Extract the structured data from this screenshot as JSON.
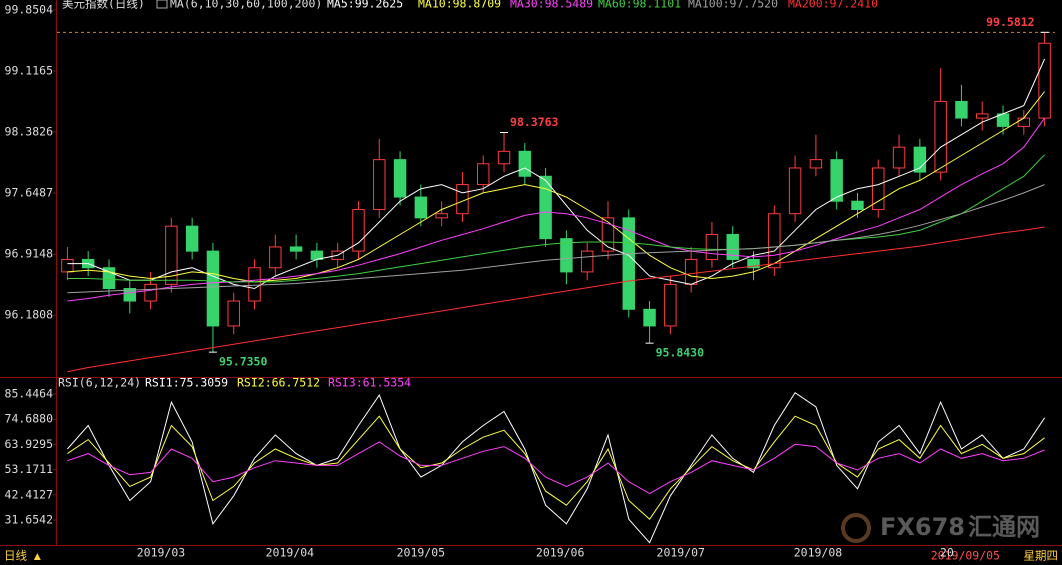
{
  "header": {
    "instrument": "美元指数(日线)",
    "ma_params": "MA(6,10,30,60,100,200)",
    "status_label": "日线 ▲",
    "status_date": "2019/09/05",
    "status_weekday": "星期四",
    "watermark": [
      "FX678",
      "汇通网"
    ]
  },
  "chart_data": [
    {
      "type": "candlestick",
      "xlim": [
        -0.5,
        47.5
      ],
      "ylim": [
        95.46,
        99.97
      ],
      "yticks": [
        99.8504,
        99.1165,
        98.3826,
        97.6487,
        96.9148,
        96.1808
      ],
      "xticks": [
        {
          "value": 4.5,
          "label": "2019/03"
        },
        {
          "value": 10.7,
          "label": "2019/04"
        },
        {
          "value": 17,
          "label": "2019/05"
        },
        {
          "value": 23.7,
          "label": "2019/06"
        },
        {
          "value": 29.5,
          "label": "2019/07"
        },
        {
          "value": 36.1,
          "label": "2019/08"
        },
        {
          "value": 42.3,
          "label": "20"
        }
      ],
      "up_color": "#ff3c3c",
      "down_color": "#36d46a",
      "open": [
        96.7,
        96.85,
        96.75,
        96.5,
        96.35,
        96.55,
        97.25,
        96.95,
        96.05,
        96.35,
        96.75,
        97.0,
        96.95,
        96.85,
        96.95,
        97.45,
        98.05,
        97.6,
        97.35,
        97.4,
        97.75,
        98.0,
        98.15,
        97.85,
        97.1,
        96.7,
        96.95,
        97.35,
        96.25,
        96.05,
        96.55,
        96.85,
        97.15,
        96.85,
        96.75,
        97.4,
        97.95,
        98.05,
        97.55,
        97.45,
        97.95,
        98.2,
        97.9,
        98.75,
        98.55,
        98.6,
        98.45,
        98.55
      ],
      "high": [
        97.0,
        96.95,
        96.85,
        96.6,
        96.7,
        97.35,
        97.35,
        97.05,
        96.45,
        96.85,
        97.15,
        97.15,
        97.05,
        97.05,
        97.55,
        98.3,
        98.15,
        97.75,
        97.55,
        97.9,
        98.1,
        98.3763,
        98.25,
        97.95,
        97.2,
        97.05,
        97.55,
        97.45,
        96.35,
        96.65,
        97.0,
        97.3,
        97.25,
        96.95,
        97.5,
        98.1,
        98.35,
        98.15,
        97.65,
        98.05,
        98.35,
        98.3,
        99.15,
        98.95,
        98.75,
        98.7,
        98.65,
        99.5812
      ],
      "low": [
        96.6,
        96.65,
        96.4,
        96.2,
        96.25,
        96.45,
        96.85,
        95.735,
        95.95,
        96.25,
        96.65,
        96.85,
        96.75,
        96.75,
        96.85,
        97.35,
        97.5,
        97.25,
        97.25,
        97.3,
        97.65,
        97.9,
        97.75,
        97.0,
        96.55,
        96.6,
        96.85,
        96.15,
        95.843,
        95.95,
        96.45,
        96.75,
        96.75,
        96.6,
        96.65,
        97.3,
        97.85,
        97.45,
        97.35,
        97.35,
        97.85,
        97.8,
        97.8,
        98.45,
        98.4,
        98.35,
        98.35,
        98.45
      ],
      "close": [
        96.85,
        96.75,
        96.5,
        96.35,
        96.55,
        97.25,
        96.95,
        96.05,
        96.35,
        96.75,
        97.0,
        96.95,
        96.85,
        96.95,
        97.45,
        98.05,
        97.6,
        97.35,
        97.4,
        97.75,
        98.0,
        98.15,
        97.85,
        97.1,
        96.7,
        96.95,
        97.35,
        96.25,
        96.05,
        96.55,
        96.85,
        97.15,
        96.85,
        96.75,
        97.4,
        97.95,
        98.05,
        97.55,
        97.45,
        97.95,
        98.2,
        97.9,
        98.75,
        98.55,
        98.6,
        98.45,
        98.55,
        99.45
      ],
      "series": [
        {
          "name": "MA5:99.2625",
          "color": "#ffffff",
          "values": [
            96.8,
            96.8,
            96.7,
            96.6,
            96.6,
            96.7,
            96.75,
            96.65,
            96.55,
            96.5,
            96.65,
            96.75,
            96.85,
            96.9,
            97.05,
            97.3,
            97.55,
            97.7,
            97.75,
            97.65,
            97.7,
            97.85,
            97.95,
            97.8,
            97.5,
            97.2,
            97.0,
            96.9,
            96.65,
            96.6,
            96.55,
            96.65,
            96.8,
            96.9,
            96.95,
            97.2,
            97.45,
            97.6,
            97.7,
            97.75,
            97.85,
            97.95,
            98.2,
            98.35,
            98.5,
            98.6,
            98.7,
            99.26
          ]
        },
        {
          "name": "MA10:98.8709",
          "color": "#ffff40",
          "values": [
            96.7,
            96.72,
            96.7,
            96.65,
            96.62,
            96.65,
            96.7,
            96.68,
            96.62,
            96.58,
            96.6,
            96.62,
            96.68,
            96.75,
            96.85,
            97.0,
            97.15,
            97.3,
            97.45,
            97.55,
            97.65,
            97.7,
            97.75,
            97.7,
            97.6,
            97.45,
            97.3,
            97.1,
            96.9,
            96.75,
            96.65,
            96.62,
            96.65,
            96.7,
            96.8,
            96.95,
            97.1,
            97.25,
            97.4,
            97.55,
            97.7,
            97.8,
            97.95,
            98.1,
            98.25,
            98.4,
            98.55,
            98.87
          ]
        },
        {
          "name": "MA30:98.5489",
          "color": "#ff40ff",
          "values": [
            96.35,
            96.38,
            96.42,
            96.45,
            96.48,
            96.52,
            96.55,
            96.57,
            96.58,
            96.6,
            96.62,
            96.65,
            96.68,
            96.72,
            96.78,
            96.85,
            96.92,
            97.0,
            97.08,
            97.15,
            97.22,
            97.3,
            97.38,
            97.42,
            97.4,
            97.35,
            97.28,
            97.2,
            97.1,
            97.0,
            96.95,
            96.92,
            96.9,
            96.88,
            96.9,
            96.95,
            97.02,
            97.1,
            97.18,
            97.25,
            97.35,
            97.45,
            97.6,
            97.75,
            97.88,
            98.0,
            98.2,
            98.55
          ]
        },
        {
          "name": "MA60:98.1101",
          "color": "#40d040",
          "values": [
            96.62,
            96.62,
            96.61,
            96.6,
            96.6,
            96.6,
            96.6,
            96.59,
            96.58,
            96.58,
            96.58,
            96.6,
            96.62,
            96.65,
            96.68,
            96.72,
            96.76,
            96.8,
            96.84,
            96.88,
            96.92,
            96.96,
            97.0,
            97.03,
            97.05,
            97.06,
            97.06,
            97.05,
            97.03,
            97.0,
            96.98,
            96.97,
            96.97,
            96.98,
            97.0,
            97.02,
            97.05,
            97.08,
            97.1,
            97.12,
            97.15,
            97.2,
            97.3,
            97.4,
            97.55,
            97.7,
            97.85,
            98.11
          ]
        },
        {
          "name": "MA100:97.7520",
          "color": "#a0a0a0",
          "values": [
            96.45,
            96.46,
            96.47,
            96.48,
            96.49,
            96.5,
            96.51,
            96.52,
            96.53,
            96.54,
            96.55,
            96.56,
            96.58,
            96.6,
            96.62,
            96.64,
            96.66,
            96.68,
            96.7,
            96.72,
            96.75,
            96.78,
            96.81,
            96.84,
            96.86,
            96.88,
            96.9,
            96.92,
            96.93,
            96.94,
            96.95,
            96.96,
            96.97,
            96.98,
            97.0,
            97.02,
            97.05,
            97.08,
            97.11,
            97.15,
            97.2,
            97.26,
            97.33,
            97.4,
            97.48,
            97.56,
            97.65,
            97.75
          ]
        },
        {
          "name": "MA200:97.2410",
          "color": "#ff3030",
          "values": [
            95.5,
            95.55,
            95.59,
            95.63,
            95.67,
            95.71,
            95.75,
            95.79,
            95.83,
            95.87,
            95.91,
            95.95,
            95.99,
            96.03,
            96.07,
            96.11,
            96.15,
            96.19,
            96.23,
            96.27,
            96.31,
            96.35,
            96.39,
            96.43,
            96.47,
            96.51,
            96.55,
            96.59,
            96.62,
            96.65,
            96.68,
            96.71,
            96.74,
            96.77,
            96.8,
            96.83,
            96.86,
            96.89,
            96.92,
            96.95,
            96.98,
            97.01,
            97.05,
            97.09,
            97.13,
            97.17,
            97.2,
            97.24
          ]
        }
      ],
      "annotations": [
        {
          "text": "99.5812",
          "value": 99.5812,
          "x": 47,
          "color": "#ff4040",
          "guide": true
        },
        {
          "text": "98.3763",
          "value": 98.3763,
          "x": 21,
          "color": "#ff4040"
        },
        {
          "text": "95.7350",
          "value": 95.735,
          "x": 7,
          "color": "#40d070"
        },
        {
          "text": "95.8430",
          "value": 95.843,
          "x": 28,
          "color": "#40d070"
        }
      ]
    },
    {
      "type": "line",
      "title": "RSI(6,12,24)",
      "xlim": [
        -0.5,
        47.5
      ],
      "ylim": [
        21,
        89.3
      ],
      "yticks": [
        85.4464,
        {
          "value": 74.688,
          "label": "74.6880"
        },
        63.9295,
        53.1711,
        42.4127,
        31.6542
      ],
      "series": [
        {
          "name": "RSI1:75.3059",
          "color": "#ffffff",
          "values": [
            62,
            72,
            55,
            40,
            48,
            82,
            65,
            30,
            42,
            58,
            68,
            60,
            55,
            58,
            72,
            85,
            62,
            50,
            55,
            65,
            72,
            78,
            62,
            38,
            30,
            45,
            68,
            32,
            22,
            42,
            55,
            68,
            58,
            52,
            72,
            86,
            80,
            55,
            45,
            65,
            72,
            60,
            82,
            62,
            68,
            58,
            62,
            75.3
          ]
        },
        {
          "name": "RSI2:66.7512",
          "color": "#ffff40",
          "values": [
            60,
            66,
            56,
            46,
            50,
            72,
            63,
            40,
            46,
            56,
            62,
            58,
            55,
            56,
            66,
            76,
            62,
            54,
            56,
            62,
            67,
            70,
            60,
            44,
            38,
            48,
            62,
            40,
            32,
            45,
            54,
            63,
            57,
            53,
            65,
            76,
            72,
            56,
            50,
            62,
            66,
            58,
            72,
            60,
            64,
            58,
            60,
            66.75
          ]
        },
        {
          "name": "RSI3:61.5354",
          "color": "#ff40ff",
          "values": [
            57,
            60,
            55,
            51,
            52,
            62,
            58,
            48,
            50,
            54,
            57,
            56,
            55,
            55,
            60,
            65,
            59,
            55,
            55,
            58,
            61,
            63,
            58,
            50,
            46,
            50,
            56,
            48,
            43,
            48,
            52,
            57,
            55,
            53,
            58,
            64,
            63,
            56,
            53,
            58,
            60,
            56,
            62,
            58,
            60,
            57,
            58,
            61.54
          ]
        }
      ]
    }
  ]
}
